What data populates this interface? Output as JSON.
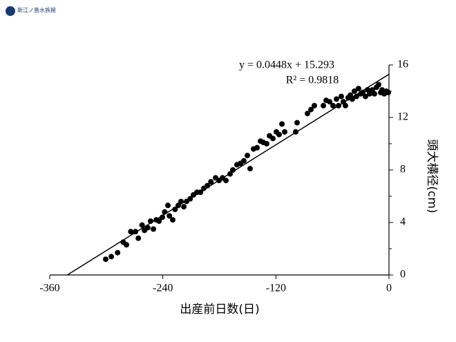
{
  "header": {
    "logo_text": "新江ノ島水族館"
  },
  "chart_data": {
    "type": "scatter",
    "x_label": "出産前日数(日)",
    "y_label": "頭大横径(cm)",
    "equation": "y = 0.0448x + 15.293",
    "r_squared": "R² = 0.9818",
    "trendline": {
      "slope": 0.0448,
      "intercept": 15.293
    },
    "xlim": [
      -360,
      0
    ],
    "xticks": [
      -360,
      -240,
      -120,
      0
    ],
    "ylim": [
      0,
      16
    ],
    "yticks": [
      0,
      4,
      8,
      12,
      16
    ],
    "yminorticks": [
      2,
      6,
      10,
      14
    ],
    "color": "#000000",
    "x": [
      -300.6,
      -294.7,
      -288,
      -282,
      -278.6,
      -274,
      -269,
      -266,
      -262,
      -259.5,
      -256,
      -253,
      -250,
      -247,
      -244,
      -240.5,
      -238,
      -234.6,
      -233,
      -229.5,
      -227,
      -223.6,
      -220.7,
      -217.7,
      -214.8,
      -211,
      -207.5,
      -203.8,
      -200,
      -196.5,
      -192.8,
      -189,
      -184,
      -180.4,
      -176.7,
      -173,
      -168.6,
      -165.7,
      -161.3,
      -157.6,
      -154,
      -150.3,
      -147.4,
      -143.7,
      -140,
      -136.4,
      -133.4,
      -129.8,
      -126.8,
      -123.2,
      -119.5,
      -116.6,
      -113.6,
      -110.7,
      -99,
      -97.5,
      -86.5,
      -82.8,
      -79.2,
      -69.6,
      -66.7,
      -63,
      -59.4,
      -55.7,
      -53.5,
      -50.6,
      -48.4,
      -46.2,
      -43.3,
      -41,
      -39,
      -36.7,
      -34.5,
      -32.3,
      -30,
      -27.9,
      -24.9,
      -22.7,
      -20.5,
      -17.6,
      -15.4,
      -13.2,
      -11,
      -8.8,
      -7.3,
      -5.1,
      -2.9,
      -0.7
    ],
    "values": [
      1.2,
      1.4,
      1.7,
      2.5,
      2.3,
      3.3,
      3.3,
      2.8,
      3.8,
      3.4,
      3.6,
      4.1,
      3.5,
      4.2,
      4.1,
      4.4,
      4.8,
      5.3,
      4.5,
      4.2,
      5,
      5.3,
      5.6,
      5.2,
      5.6,
      5.8,
      6.1,
      6.3,
      6.3,
      6.6,
      6.8,
      7.1,
      7.4,
      7.2,
      7.4,
      7.2,
      7.7,
      8,
      8.4,
      8.5,
      8.7,
      9.1,
      8.1,
      9.6,
      9.7,
      10.2,
      10.1,
      10,
      10.6,
      10.4,
      10.9,
      10.7,
      11.5,
      10.9,
      10.9,
      11.6,
      12.3,
      12.6,
      12.9,
      12.9,
      13.3,
      13.2,
      12.9,
      13.4,
      12.9,
      13.6,
      13.2,
      12.9,
      13.5,
      13.7,
      13.4,
      14,
      13.6,
      14.2,
      13.8,
      13.9,
      13.6,
      14.1,
      13.8,
      14.1,
      13.8,
      14.3,
      14.5,
      13.9,
      14.1,
      13.8,
      14,
      13.9
    ]
  }
}
